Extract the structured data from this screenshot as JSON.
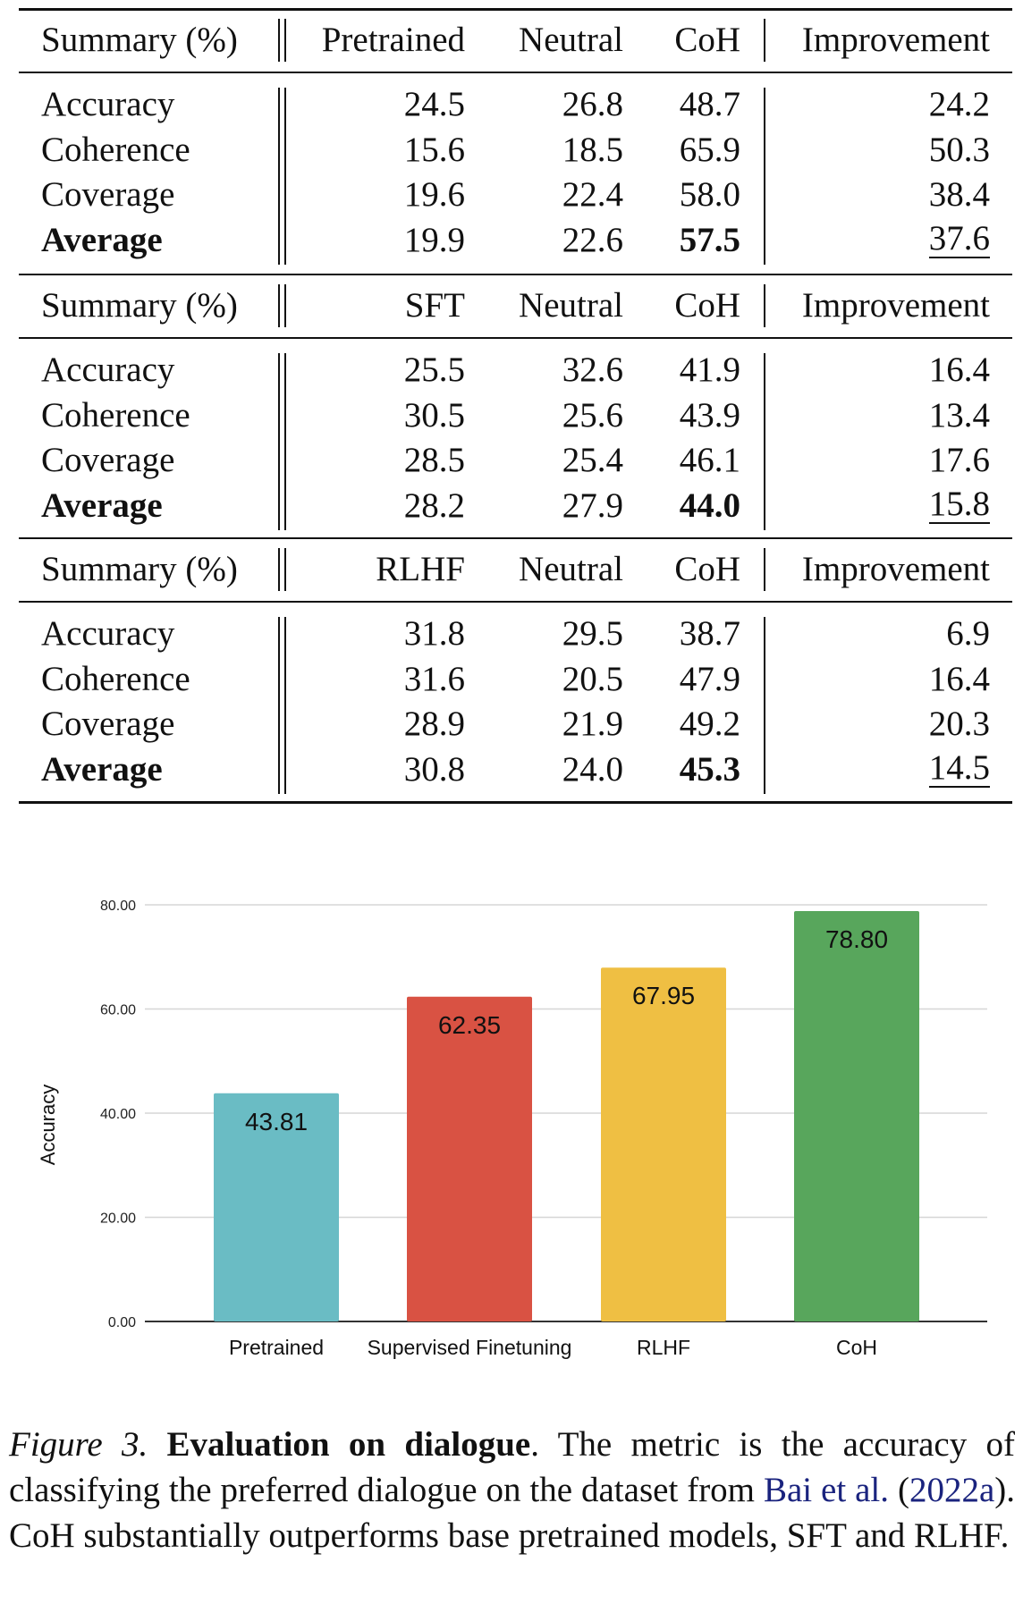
{
  "tables": [
    {
      "header": [
        "Summary (%)",
        "Pretrained",
        "Neutral",
        "CoH",
        "Improvement"
      ],
      "rows": [
        {
          "label": "Accuracy",
          "values": [
            "24.5",
            "26.8",
            "48.7",
            "24.2"
          ]
        },
        {
          "label": "Coherence",
          "values": [
            "15.6",
            "18.5",
            "65.9",
            "50.3"
          ]
        },
        {
          "label": "Coverage",
          "values": [
            "19.6",
            "22.4",
            "58.0",
            "38.4"
          ]
        },
        {
          "label": "Average",
          "values": [
            "19.9",
            "22.6",
            "57.5",
            "37.6"
          ]
        }
      ]
    },
    {
      "header": [
        "Summary (%)",
        "SFT",
        "Neutral",
        "CoH",
        "Improvement"
      ],
      "rows": [
        {
          "label": "Accuracy",
          "values": [
            "25.5",
            "32.6",
            "41.9",
            "16.4"
          ]
        },
        {
          "label": "Coherence",
          "values": [
            "30.5",
            "25.6",
            "43.9",
            "13.4"
          ]
        },
        {
          "label": "Coverage",
          "values": [
            "28.5",
            "25.4",
            "46.1",
            "17.6"
          ]
        },
        {
          "label": "Average",
          "values": [
            "28.2",
            "27.9",
            "44.0",
            "15.8"
          ]
        }
      ]
    },
    {
      "header": [
        "Summary (%)",
        "RLHF",
        "Neutral",
        "CoH",
        "Improvement"
      ],
      "rows": [
        {
          "label": "Accuracy",
          "values": [
            "31.8",
            "29.5",
            "38.7",
            "6.9"
          ]
        },
        {
          "label": "Coherence",
          "values": [
            "31.6",
            "20.5",
            "47.9",
            "16.4"
          ]
        },
        {
          "label": "Coverage",
          "values": [
            "28.9",
            "21.9",
            "49.2",
            "20.3"
          ]
        },
        {
          "label": "Average",
          "values": [
            "30.8",
            "24.0",
            "45.3",
            "14.5"
          ]
        }
      ]
    }
  ],
  "chart_data": {
    "type": "bar",
    "categories": [
      "Pretrained",
      "Supervised Finetuning",
      "RLHF",
      "CoH"
    ],
    "values": [
      43.81,
      62.35,
      67.95,
      78.8
    ],
    "data_labels": [
      "43.81",
      "62.35",
      "67.95",
      "78.80"
    ],
    "colors": [
      "#6abcc4",
      "#d95243",
      "#efbf43",
      "#58a65c"
    ],
    "title": "",
    "xlabel": "",
    "ylabel": "Accuracy",
    "ylim": [
      0,
      80
    ],
    "yticks": [
      "0.00",
      "20.00",
      "40.00",
      "60.00",
      "80.00"
    ],
    "grid": true,
    "legend": "none"
  },
  "caption": {
    "figure_label": "Figure 3.",
    "title": "Evaluation on dialogue",
    "text_1": ". The metric is the accuracy of classifying the preferred dialogue on the dataset from ",
    "cite_authors": "Bai et al.",
    "text_2": " (",
    "cite_year": "2022a",
    "text_3": "). CoH substantially outperforms base pretrained models, SFT and RLHF."
  }
}
